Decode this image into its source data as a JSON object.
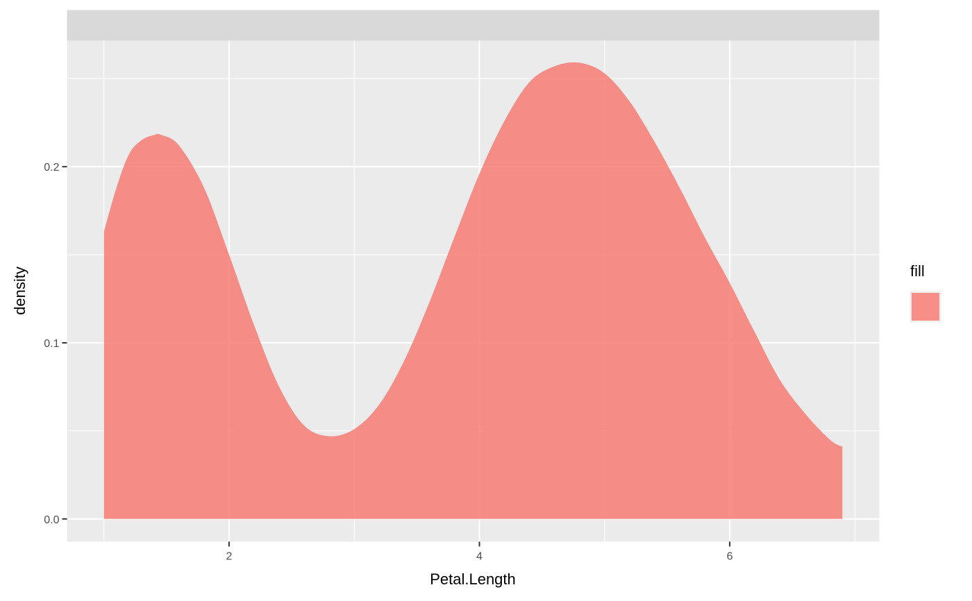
{
  "chart_data": {
    "type": "area",
    "title": "",
    "xlabel": "Petal.Length",
    "ylabel": "density",
    "xlim": [
      0.705,
      7.195
    ],
    "ylim": [
      -0.0129,
      0.2716
    ],
    "x_ticks": [
      2,
      4,
      6
    ],
    "x_tick_labels": [
      "2",
      "4",
      "6"
    ],
    "y_ticks": [
      0.0,
      0.1,
      0.2
    ],
    "y_tick_labels": [
      "0.0",
      "0.1",
      "0.2"
    ],
    "grid": true,
    "legend": {
      "title": "fill",
      "position": "right"
    },
    "colors": {
      "fill": "#F8766D",
      "panel": "#EBEBEB",
      "strip": "#D9D9D9",
      "grid": "#FFFFFF"
    },
    "fill_opacity": 0.8,
    "series": [
      {
        "x": [
          1.0,
          1.1,
          1.2,
          1.3,
          1.4,
          1.46,
          1.6,
          1.8,
          2.0,
          2.2,
          2.4,
          2.6,
          2.8,
          3.0,
          3.2,
          3.4,
          3.6,
          3.8,
          4.0,
          4.2,
          4.4,
          4.6,
          4.8,
          5.0,
          5.2,
          5.4,
          5.6,
          5.8,
          6.0,
          6.2,
          6.4,
          6.6,
          6.8,
          6.9
        ],
        "y": [
          0.163,
          0.188,
          0.207,
          0.215,
          0.218,
          0.218,
          0.212,
          0.188,
          0.15,
          0.11,
          0.075,
          0.053,
          0.047,
          0.051,
          0.065,
          0.09,
          0.123,
          0.16,
          0.196,
          0.226,
          0.248,
          0.257,
          0.259,
          0.253,
          0.237,
          0.214,
          0.188,
          0.16,
          0.134,
          0.106,
          0.079,
          0.06,
          0.045,
          0.041
        ]
      }
    ]
  }
}
